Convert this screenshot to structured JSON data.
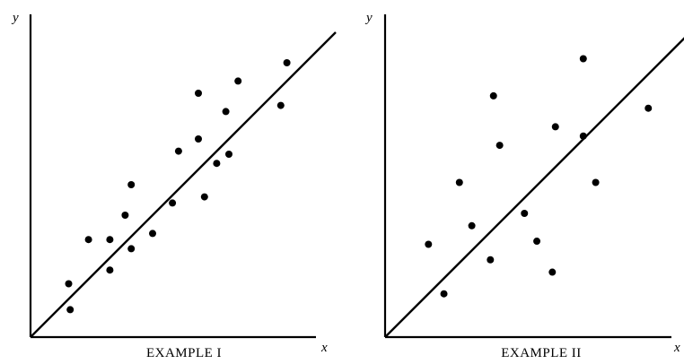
{
  "chart_data": [
    {
      "type": "scatter",
      "title": "EXAMPLE I",
      "xlabel": "x",
      "ylabel": "y",
      "xlim": [
        0,
        10
      ],
      "ylim": [
        0,
        10
      ],
      "grid": false,
      "points": [
        {
          "x": 1.25,
          "y": 1.75
        },
        {
          "x": 1.3,
          "y": 0.9
        },
        {
          "x": 1.9,
          "y": 3.2
        },
        {
          "x": 2.6,
          "y": 3.2
        },
        {
          "x": 2.6,
          "y": 2.2
        },
        {
          "x": 3.1,
          "y": 4.0
        },
        {
          "x": 3.3,
          "y": 2.9
        },
        {
          "x": 3.3,
          "y": 5.0
        },
        {
          "x": 4.0,
          "y": 3.4
        },
        {
          "x": 4.65,
          "y": 4.4
        },
        {
          "x": 4.85,
          "y": 6.1
        },
        {
          "x": 5.5,
          "y": 6.5
        },
        {
          "x": 5.5,
          "y": 8.0
        },
        {
          "x": 5.7,
          "y": 4.6
        },
        {
          "x": 6.1,
          "y": 5.7
        },
        {
          "x": 6.4,
          "y": 7.4
        },
        {
          "x": 6.5,
          "y": 6.0
        },
        {
          "x": 6.8,
          "y": 8.4
        },
        {
          "x": 8.2,
          "y": 7.6
        },
        {
          "x": 8.4,
          "y": 9.0
        }
      ],
      "fit_line": {
        "x": [
          0,
          10
        ],
        "y": [
          0,
          10
        ]
      }
    },
    {
      "type": "scatter",
      "title": "EXAMPLE II",
      "xlabel": "x",
      "ylabel": "y",
      "xlim": [
        0,
        10
      ],
      "ylim": [
        0,
        10
      ],
      "grid": false,
      "points": [
        {
          "x": 1.4,
          "y": 3.0
        },
        {
          "x": 1.9,
          "y": 1.4
        },
        {
          "x": 2.4,
          "y": 5.0
        },
        {
          "x": 2.8,
          "y": 3.6
        },
        {
          "x": 3.4,
          "y": 2.5
        },
        {
          "x": 3.5,
          "y": 7.8
        },
        {
          "x": 3.7,
          "y": 6.2
        },
        {
          "x": 4.5,
          "y": 4.0
        },
        {
          "x": 4.9,
          "y": 3.1
        },
        {
          "x": 5.4,
          "y": 2.1
        },
        {
          "x": 5.5,
          "y": 6.8
        },
        {
          "x": 6.4,
          "y": 9.0
        },
        {
          "x": 6.4,
          "y": 6.5
        },
        {
          "x": 6.8,
          "y": 5.0
        },
        {
          "x": 8.5,
          "y": 7.4
        }
      ],
      "fit_line": {
        "x": [
          0,
          10
        ],
        "y": [
          0,
          10
        ]
      }
    }
  ]
}
